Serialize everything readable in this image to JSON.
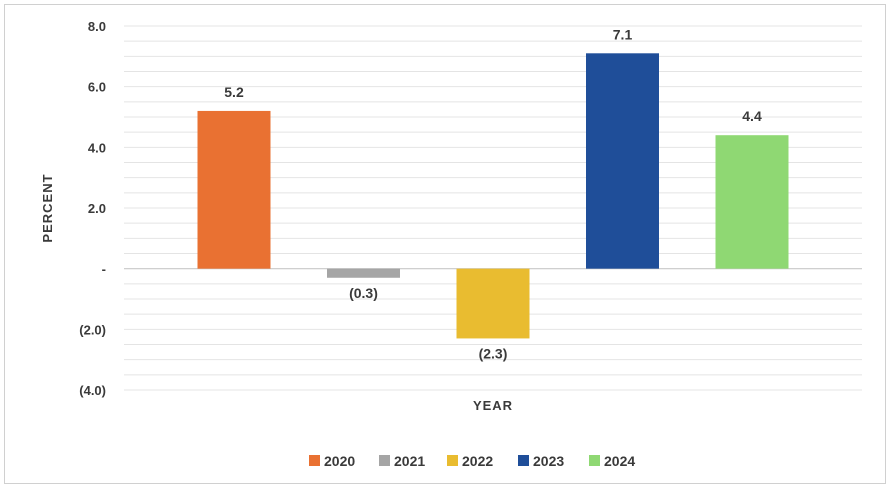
{
  "chart_data": {
    "type": "bar",
    "title": "",
    "xlabel": "YEAR",
    "ylabel": "PERCENT",
    "ylim": [
      -4,
      8
    ],
    "yticks": [
      8,
      6,
      4,
      2,
      0,
      -2,
      -4
    ],
    "ytick_labels": [
      "8.0",
      "6.0",
      "4.0",
      "2.0",
      "-",
      "(2.0)",
      "(4.0)"
    ],
    "grid_minor_step": 0.5,
    "categories": [
      "2020",
      "2021",
      "2022",
      "2023",
      "2024"
    ],
    "values": [
      5.2,
      -0.3,
      -2.3,
      7.1,
      4.4
    ],
    "value_labels": [
      "5.2",
      "(0.3)",
      "(2.3)",
      "7.1",
      "4.4"
    ],
    "colors": [
      "#E97132",
      "#A5A5A5",
      "#E9BC30",
      "#1F4E99",
      "#8FD873"
    ],
    "legend": {
      "position": "bottom",
      "entries": [
        "2020",
        "2021",
        "2022",
        "2023",
        "2024"
      ]
    }
  }
}
